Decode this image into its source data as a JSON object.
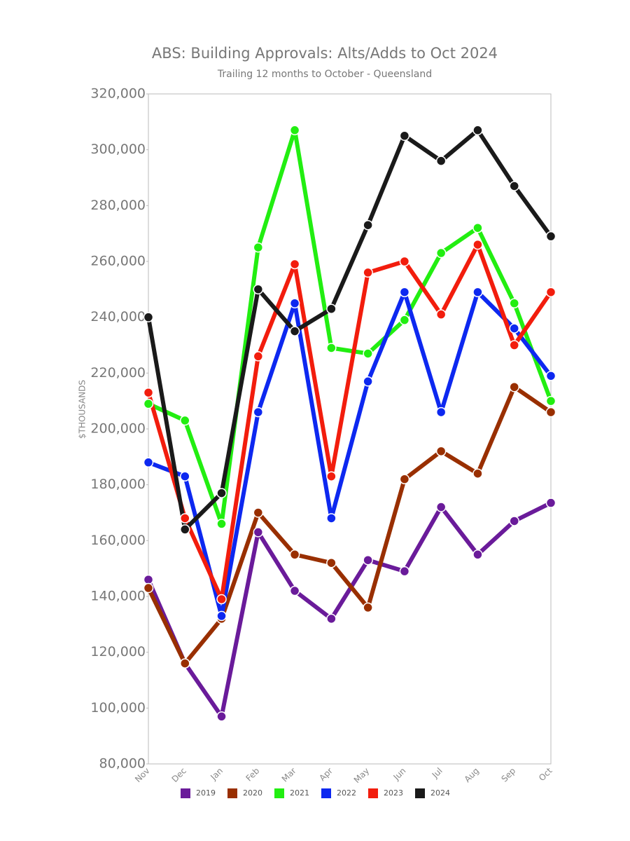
{
  "chart_data": {
    "type": "line",
    "title": "ABS: Building Approvals: Alts/Adds to Oct 2024",
    "subtitle": "Trailing 12 months to October - Queensland",
    "y_label": "$THOUSANDS",
    "categories": [
      "Nov",
      "Dec",
      "Jan",
      "Feb",
      "Mar",
      "Apr",
      "May",
      "Jun",
      "Jul",
      "Aug",
      "Sep",
      "Oct"
    ],
    "ylim": [
      80000,
      320000
    ],
    "yticks": [
      {
        "value": 80000,
        "label": "80,000"
      },
      {
        "value": 100000,
        "label": "100,000"
      },
      {
        "value": 120000,
        "label": "120,000"
      },
      {
        "value": 140000,
        "label": "140,000"
      },
      {
        "value": 160000,
        "label": "160,000"
      },
      {
        "value": 180000,
        "label": "180,000"
      },
      {
        "value": 200000,
        "label": "200,000"
      },
      {
        "value": 220000,
        "label": "220,000"
      },
      {
        "value": 240000,
        "label": "240,000"
      },
      {
        "value": 260000,
        "label": "260,000"
      },
      {
        "value": 280000,
        "label": "280,000"
      },
      {
        "value": 300000,
        "label": "300,000"
      },
      {
        "value": 320000,
        "label": "320,000"
      }
    ],
    "grid": false,
    "legend": "bottom",
    "series": [
      {
        "name": "2019",
        "color": "#6a1b9a",
        "values": [
          146000,
          116000,
          97000,
          163000,
          142000,
          132000,
          153000,
          149000,
          172000,
          155000,
          167000,
          173500
        ]
      },
      {
        "name": "2020",
        "color": "#992f00",
        "values": [
          143000,
          116000,
          132000,
          170000,
          155000,
          152000,
          136000,
          182000,
          192000,
          184000,
          215000,
          206000
        ]
      },
      {
        "name": "2021",
        "color": "#22ee11",
        "values": [
          209000,
          203000,
          166000,
          265000,
          307000,
          229000,
          227000,
          239000,
          263000,
          272000,
          245000,
          210000
        ]
      },
      {
        "name": "2022",
        "color": "#0d28f0",
        "values": [
          188000,
          183000,
          133000,
          206000,
          245000,
          168000,
          217000,
          249000,
          206000,
          249000,
          236000,
          219000
        ]
      },
      {
        "name": "2023",
        "color": "#f21d0d",
        "values": [
          213000,
          168000,
          139000,
          226000,
          259000,
          183000,
          256000,
          260000,
          241000,
          266000,
          230000,
          249000
        ]
      },
      {
        "name": "2024",
        "color": "#1a1a1a",
        "values": [
          240000,
          164000,
          177000,
          250000,
          235000,
          243000,
          273000,
          305000,
          296000,
          307000,
          287000,
          269000
        ]
      }
    ]
  }
}
